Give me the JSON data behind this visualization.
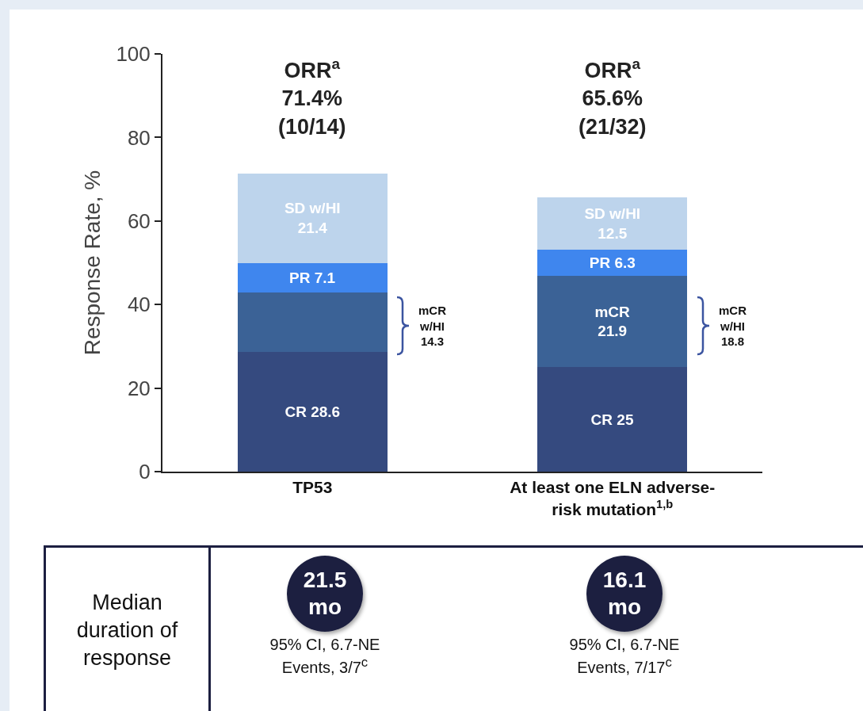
{
  "chart_data": [
    {
      "type": "bar",
      "stacked": true,
      "categories": [
        "TP53",
        "At least one ELN adverse-\nrisk mutation$^{1,b}$"
      ],
      "ylabel": "Response Rate, %",
      "ylim": [
        0,
        100
      ],
      "yticks": [
        0,
        20,
        40,
        60,
        80,
        100
      ],
      "series": [
        {
          "color": "#354a7f",
          "values": [
            28.6,
            25
          ],
          "value_labels": [
            "CR 28.6",
            "CR 25"
          ]
        },
        {
          "color": "#3b6296",
          "values": [
            14.3,
            21.9
          ],
          "value_labels": [
            null,
            "mCR\n21.9"
          ]
        },
        {
          "color": "#3f86ee",
          "values": [
            7.1,
            6.3
          ],
          "value_labels": [
            "PR 7.1",
            "PR 6.3"
          ]
        },
        {
          "color": "#bdd4ec",
          "values": [
            21.4,
            12.5
          ],
          "value_labels": [
            "SD w/HI\n21.4",
            "SD w/HI\n12.5"
          ]
        }
      ],
      "totals": [
        "ORR$^{a}$\n71.4%\n(10/14)",
        "ORR$^{a}$\n65.6%\n(21/32)"
      ],
      "annotations": [
        "mCR\nw/HI\n14.3",
        "mCR\nw/HI\n18.8"
      ]
    },
    {
      "type": "other",
      "title": "Median\nduration of\nresponse",
      "annotations": [
        "21.5\nmo",
        "95% CI, 6.7-NE\nEvents, 3/7$^{c}$",
        "16.1\nmo",
        "95% CI, 6.7-NE\nEvents, 7/17$^{c}$"
      ]
    }
  ]
}
